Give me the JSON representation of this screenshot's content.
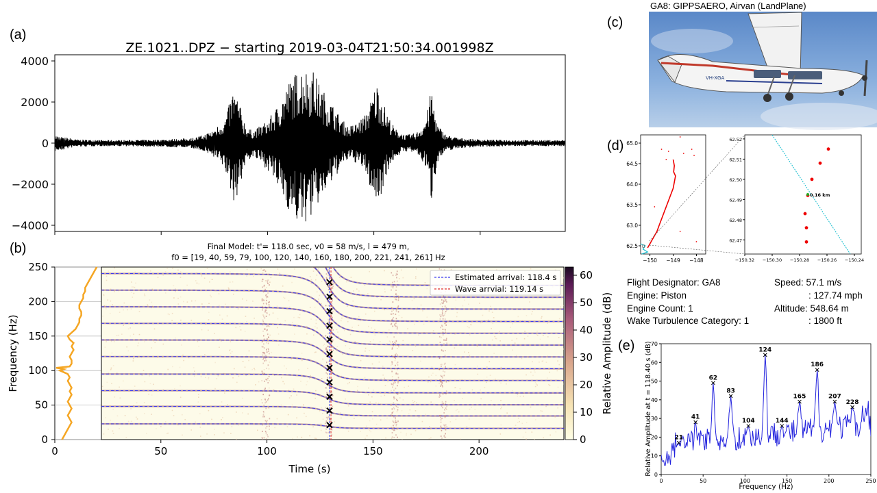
{
  "panel_labels": {
    "a": "(a)",
    "b": "(b)",
    "c": "(c)",
    "d": "(d)",
    "e": "(e)"
  },
  "aircraft": {
    "caption": "GA8: GIPPSAERO, Airvan (LandPlane)",
    "registration_visible": "VH-XGA",
    "info": {
      "flight_designator": "Flight Designator: GA8",
      "engine": "Engine: Piston",
      "engine_count": "Engine Count: 1",
      "wake": "Wake Turbulence Category: 1",
      "speed": "Speed: 57.1 m/s",
      "speed_mph": ": 127.74 mph",
      "altitude": "Altitude: 548.64 m",
      "altitude_ft": ": 1800 ft"
    }
  },
  "chart_data": [
    {
      "id": "a",
      "type": "line",
      "title": "ZE.1021..DPZ − starting 2019-03-04T21:50:34.001998Z",
      "xlim": [
        0,
        240
      ],
      "ylim": [
        -4300,
        4300
      ],
      "yticks": [
        -4000,
        -2000,
        0,
        2000,
        4000
      ],
      "ytick_labels": [
        "−4000",
        "−2000",
        "0",
        "2000",
        "4000"
      ],
      "envelope": {
        "t": [
          0,
          10,
          20,
          30,
          40,
          50,
          60,
          65,
          70,
          75,
          80,
          82,
          84,
          86,
          88,
          90,
          93,
          96,
          100,
          104,
          107,
          110,
          113,
          115,
          117,
          119,
          121,
          123,
          126,
          130,
          134,
          138,
          142,
          146,
          148,
          150,
          152,
          154,
          156,
          160,
          165,
          170,
          174,
          176,
          177,
          178,
          180,
          184,
          190,
          200,
          210,
          220,
          230,
          240
        ],
        "upper": [
          400,
          180,
          150,
          150,
          160,
          180,
          220,
          260,
          400,
          700,
          1200,
          1900,
          2700,
          2200,
          1500,
          800,
          600,
          800,
          1100,
          1700,
          2300,
          3000,
          3400,
          3600,
          3800,
          3500,
          3700,
          3200,
          2600,
          2000,
          1300,
          800,
          1000,
          1400,
          1900,
          2600,
          3000,
          2200,
          1500,
          700,
          400,
          500,
          1100,
          2000,
          2800,
          2000,
          900,
          400,
          250,
          180,
          160,
          150,
          150,
          150
        ],
        "lower": [
          -400,
          -180,
          -150,
          -150,
          -160,
          -180,
          -220,
          -260,
          -400,
          -700,
          -1300,
          -2100,
          -2900,
          -2500,
          -1700,
          -900,
          -700,
          -900,
          -1300,
          -2000,
          -2600,
          -3300,
          -3800,
          -4000,
          -4100,
          -3700,
          -3600,
          -3200,
          -2600,
          -2000,
          -1300,
          -800,
          -1000,
          -1400,
          -2100,
          -2700,
          -3000,
          -2300,
          -1500,
          -700,
          -400,
          -500,
          -1100,
          -2000,
          -2900,
          -2100,
          -900,
          -400,
          -250,
          -180,
          -160,
          -150,
          -150,
          -150
        ]
      }
    },
    {
      "id": "b",
      "type": "heatmap",
      "title_line1": "Final Model: t'= 118.0 sec, v0 = 58 m/s, l = 479 m,",
      "title_line2": "f0 = [19, 40, 59, 79, 100, 120, 140, 160, 180, 200, 221, 241, 261] Hz",
      "xlabel": "Time (s)",
      "ylabel": "Frequency (Hz)",
      "colorbar_label": "Relative Amplitude (dB)",
      "xlim": [
        0,
        240
      ],
      "ylim": [
        0,
        250
      ],
      "xticks": [
        0,
        50,
        100,
        150,
        200
      ],
      "yticks": [
        0,
        50,
        100,
        150,
        200,
        250
      ],
      "colorbar_ticks": [
        0,
        10,
        20,
        30,
        40,
        50,
        60
      ],
      "colorbar_range": [
        0,
        63
      ],
      "f0": [
        19,
        40,
        59,
        79,
        100,
        120,
        140,
        160,
        180,
        200,
        221,
        241,
        261
      ],
      "t_prime": 118.0,
      "v0": 58,
      "l": 479,
      "estimated_arrival": 118.4,
      "wave_arrival": 119.14,
      "legend": [
        "Estimated arrival: 118.4 s",
        "Wave arrvial: 119.14 s"
      ],
      "legend_colors": [
        "#3a3af0",
        "#e03030"
      ],
      "marker_freqs": [
        21,
        42,
        62,
        83,
        104,
        124,
        145,
        165,
        186,
        207,
        228
      ],
      "vertical_bands_t": [
        85,
        118,
        152,
        177
      ],
      "amplitude_profile": {
        "freq": [
          0,
          5,
          10,
          15,
          20,
          25,
          30,
          35,
          40,
          45,
          50,
          55,
          60,
          65,
          70,
          75,
          80,
          85,
          90,
          95,
          100,
          102,
          104,
          106,
          110,
          115,
          120,
          125,
          130,
          135,
          140,
          145,
          150,
          155,
          160,
          165,
          170,
          175,
          180,
          185,
          190,
          195,
          200,
          205,
          210,
          215,
          220,
          225,
          230,
          235,
          240,
          245,
          250
        ],
        "value": [
          3,
          4,
          5,
          6,
          7,
          8,
          7,
          6,
          7,
          8,
          7,
          6,
          7,
          8,
          7,
          8,
          7,
          6,
          7,
          6,
          2,
          4,
          0,
          7,
          8,
          8,
          7,
          8,
          9,
          8,
          9,
          7,
          6,
          8,
          10,
          11,
          12,
          12,
          13,
          13,
          12,
          12,
          13,
          14,
          14,
          15,
          15,
          16,
          17,
          18,
          19,
          20,
          21
        ]
      }
    },
    {
      "id": "d",
      "type": "scatter",
      "left": {
        "xlim": [
          -150.4,
          -147.6
        ],
        "ylim": [
          62.3,
          65.2
        ],
        "xticks": [
          -150,
          -149,
          -148
        ],
        "yticks": [
          62.5,
          63.0,
          63.5,
          64.0,
          64.5,
          65.0
        ],
        "track": {
          "lon": [
            -149.0,
            -148.95,
            -148.98,
            -148.9,
            -148.95,
            -149.0,
            -149.1,
            -149.2,
            -149.3,
            -149.4,
            -149.5,
            -149.6,
            -149.7,
            -149.8,
            -149.9,
            -150.0,
            -150.1
          ],
          "lat": [
            64.6,
            64.45,
            64.3,
            64.2,
            64.05,
            63.9,
            63.75,
            63.6,
            63.45,
            63.3,
            63.15,
            63.0,
            62.85,
            62.75,
            62.65,
            62.55,
            62.45
          ]
        },
        "scatter": {
          "lon": [
            -148.7,
            -148.2,
            -148.1,
            -149.5,
            -149.2,
            -148.55,
            -149.8,
            -148.0,
            -149.3,
            -148.7
          ],
          "lat": [
            65.15,
            64.85,
            64.7,
            64.85,
            64.8,
            64.75,
            63.45,
            62.6,
            64.6,
            62.85
          ]
        }
      },
      "right": {
        "xlim": [
          -150.32,
          -150.235
        ],
        "ylim": [
          62.463,
          62.522
        ],
        "xticks": [
          -150.32,
          -150.3,
          -150.28,
          -150.26,
          -150.24
        ],
        "xtick_labels": [
          "−150.32",
          "−150.30",
          "−150.28",
          "−150.26",
          "−150.24"
        ],
        "yticks": [
          62.47,
          62.48,
          62.49,
          62.5,
          62.51,
          62.52
        ],
        "ytick_labels": [
          "62.47",
          "62.48",
          "62.49",
          "62.50",
          "62.51",
          "62.52"
        ],
        "points": {
          "lon": [
            -150.259,
            -150.265,
            -150.271,
            -150.274,
            -150.276,
            -150.275,
            -150.275
          ],
          "lat": [
            62.515,
            62.508,
            62.5,
            62.492,
            62.483,
            62.476,
            62.469
          ]
        },
        "line": {
          "lon": [
            -150.3,
            -150.243
          ],
          "lat": [
            62.522,
            62.463
          ]
        },
        "closest_point": {
          "lon": -150.274,
          "lat": 62.4925
        },
        "annotation": "0.16 km"
      }
    },
    {
      "id": "e",
      "type": "line",
      "xlabel": "Frequency (Hz)",
      "ylabel": "Relative Amplitude at t = 118.40 s (dB)",
      "xlim": [
        0,
        250
      ],
      "ylim": [
        0,
        70
      ],
      "xticks": [
        0,
        50,
        100,
        150,
        200,
        250
      ],
      "yticks": [
        0,
        10,
        20,
        30,
        40,
        50,
        60,
        70
      ],
      "peaks": {
        "freq": [
          21,
          41,
          62,
          83,
          104,
          124,
          144,
          165,
          186,
          207,
          228
        ],
        "value": [
          17,
          28,
          49,
          42,
          26,
          64,
          26,
          39,
          56,
          39,
          36
        ],
        "labels": [
          "21",
          "41",
          "62",
          "83",
          "104",
          "124",
          "144",
          "165",
          "186",
          "207",
          "228"
        ]
      }
    }
  ]
}
